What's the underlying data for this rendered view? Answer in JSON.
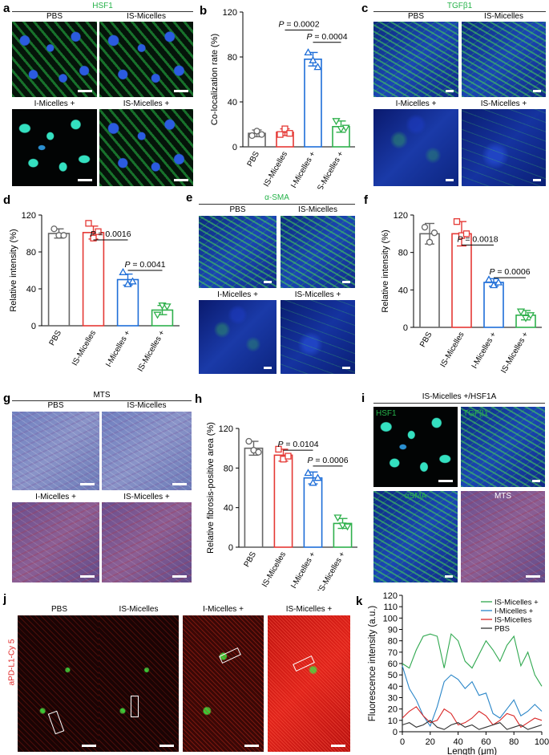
{
  "panels": {
    "a": {
      "letter": "a",
      "stain": "HSF1",
      "cols": [
        "PBS",
        "IS-Micelles"
      ],
      "rows2": [
        "I-Micelles +",
        "IS-Micelles +"
      ]
    },
    "c": {
      "letter": "c",
      "stain": "TGFβ1",
      "cols": [
        "PBS",
        "IS-Micelles"
      ],
      "rows2": [
        "I-Micelles +",
        "IS-Micelles +"
      ]
    },
    "e": {
      "letter": "e",
      "stain": "α-SMA",
      "cols": [
        "PBS",
        "IS-Micelles"
      ],
      "rows2": [
        "I-Micelles +",
        "IS-Micelles +"
      ]
    },
    "g": {
      "letter": "g",
      "stain": "MTS",
      "cols": [
        "PBS",
        "IS-Micelles"
      ],
      "rows2": [
        "I-Micelles +",
        "IS-Micelles +"
      ]
    },
    "i": {
      "letter": "i",
      "title": "IS-Micelles +/HSF1A",
      "labels": [
        "HSF1",
        "TGFβ1",
        "αSMA",
        "MTS"
      ]
    },
    "j": {
      "letter": "j",
      "side": "aPD-L1-Cy 5",
      "cols": [
        "PBS",
        "IS-Micelles",
        "I-Micelles +",
        "IS-Micelles +"
      ]
    }
  },
  "chart_data": [
    {
      "id": "b",
      "letter": "b",
      "type": "bar",
      "categories": [
        "PBS",
        "IS-Micelles",
        "I-Micelles +",
        "IS-Micelles +"
      ],
      "values": [
        12,
        13,
        78,
        18
      ],
      "points": [
        [
          10,
          14,
          11
        ],
        [
          11,
          16,
          12
        ],
        [
          84,
          77,
          71
        ],
        [
          23,
          16,
          17
        ]
      ],
      "errors": [
        3,
        3,
        6,
        5
      ],
      "colors": [
        "#666666",
        "#e53935",
        "#1e6ed8",
        "#2fb04c"
      ],
      "ylabel": "Co-localization rate (%)",
      "ylim": [
        0,
        120
      ],
      "yticks": [
        0,
        40,
        80,
        120
      ],
      "markers": [
        "circle",
        "square",
        "triangle",
        "triangle-down"
      ],
      "annotations": [
        {
          "text": "P = 0.0002",
          "from": 1,
          "to": 2,
          "y": 104
        },
        {
          "text": "P = 0.0004",
          "from": 2,
          "to": 3,
          "y": 93
        }
      ]
    },
    {
      "id": "d",
      "letter": "d",
      "type": "bar",
      "categories": [
        "PBS",
        "IS-Micelles",
        "I-Micelles +",
        "IS-Micelles +"
      ],
      "values": [
        100,
        101,
        50,
        17
      ],
      "points": [
        [
          105,
          98,
          98
        ],
        [
          111,
          95,
          102
        ],
        [
          58,
          45,
          48
        ],
        [
          12,
          22,
          21
        ]
      ],
      "errors": [
        5,
        7,
        6,
        5
      ],
      "colors": [
        "#666666",
        "#e53935",
        "#1e6ed8",
        "#2fb04c"
      ],
      "ylabel": "Relative intensity (%)",
      "ylim": [
        0,
        120
      ],
      "yticks": [
        0,
        40,
        80,
        120
      ],
      "markers": [
        "circle",
        "square",
        "triangle",
        "triangle-down"
      ],
      "annotations": [
        {
          "text": "P = 0.0016",
          "from": 1,
          "to": 2,
          "y": 93
        },
        {
          "text": "P = 0.0041",
          "from": 2,
          "to": 3,
          "y": 60
        }
      ]
    },
    {
      "id": "f",
      "letter": "f",
      "type": "bar",
      "categories": [
        "PBS",
        "IS-Micelles",
        "I-Micelles +",
        "IS-Micelles +"
      ],
      "values": [
        100,
        100,
        48,
        13
      ],
      "points": [
        [
          107,
          91,
          101
        ],
        [
          113,
          98,
          100
        ],
        [
          51,
          45,
          48
        ],
        [
          17,
          10,
          13
        ]
      ],
      "errors": [
        11,
        13,
        4,
        5
      ],
      "colors": [
        "#666666",
        "#e53935",
        "#1e6ed8",
        "#2fb04c"
      ],
      "ylabel": "Relative intensity (%)",
      "ylim": [
        0,
        120
      ],
      "yticks": [
        0,
        40,
        80,
        120
      ],
      "markers": [
        "circle",
        "square",
        "triangle",
        "triangle-down"
      ],
      "annotations": [
        {
          "text": "P = 0.0018",
          "from": 1,
          "to": 2,
          "y": 88
        },
        {
          "text": "P = 0.0006",
          "from": 2,
          "to": 3,
          "y": 53
        }
      ]
    },
    {
      "id": "h",
      "letter": "h",
      "type": "bar",
      "categories": [
        "PBS",
        "IS-Micelles",
        "I-Micelles +",
        "IS-Micelles +"
      ],
      "values": [
        100,
        93,
        70,
        24
      ],
      "points": [
        [
          107,
          98,
          96
        ],
        [
          99,
          89,
          92
        ],
        [
          75,
          65,
          70
        ],
        [
          30,
          22,
          21
        ]
      ],
      "errors": [
        7,
        6,
        6,
        5
      ],
      "colors": [
        "#666666",
        "#e53935",
        "#1e6ed8",
        "#2fb04c"
      ],
      "ylabel": "Relative fibrosis-positive area (%)",
      "ylim": [
        0,
        120
      ],
      "yticks": [
        0,
        40,
        80,
        120
      ],
      "markers": [
        "circle",
        "square",
        "triangle",
        "triangle-down"
      ],
      "annotations": [
        {
          "text": "P = 0.0104",
          "from": 1,
          "to": 2,
          "y": 98
        },
        {
          "text": "P = 0.0006",
          "from": 2,
          "to": 3,
          "y": 82
        }
      ]
    },
    {
      "id": "k",
      "letter": "k",
      "type": "line",
      "xlabel": "Length (μm)",
      "ylabel": "Fluorescence intensity (a.u.)",
      "xlim": [
        0,
        100
      ],
      "ylim": [
        0,
        120
      ],
      "xticks": [
        0,
        20,
        40,
        60,
        80,
        100
      ],
      "yticks": [
        0,
        10,
        20,
        30,
        40,
        50,
        60,
        70,
        80,
        90,
        100,
        110,
        120
      ],
      "legend": "top-right",
      "x": [
        0,
        5,
        10,
        15,
        20,
        25,
        30,
        35,
        40,
        45,
        50,
        55,
        60,
        65,
        70,
        75,
        80,
        85,
        90,
        95,
        100
      ],
      "series": [
        {
          "name": "IS-Micelles +",
          "color": "#2fa84f",
          "values": [
            60,
            56,
            72,
            84,
            86,
            84,
            56,
            86,
            80,
            62,
            56,
            68,
            80,
            72,
            62,
            76,
            84,
            58,
            70,
            50,
            40
          ]
        },
        {
          "name": "I-Micelles +",
          "color": "#2a86c8",
          "values": [
            58,
            38,
            28,
            14,
            5,
            22,
            44,
            50,
            46,
            38,
            44,
            32,
            34,
            16,
            12,
            20,
            28,
            14,
            18,
            24,
            18
          ]
        },
        {
          "name": "IS-Micelles",
          "color": "#d92626",
          "values": [
            12,
            18,
            22,
            14,
            8,
            10,
            20,
            16,
            6,
            8,
            12,
            18,
            14,
            6,
            10,
            16,
            14,
            4,
            8,
            12,
            10
          ]
        },
        {
          "name": "PBS",
          "color": "#333333",
          "values": [
            6,
            8,
            4,
            6,
            10,
            4,
            2,
            6,
            8,
            4,
            6,
            2,
            4,
            6,
            8,
            2,
            4,
            6,
            2,
            4,
            6
          ]
        }
      ]
    }
  ]
}
